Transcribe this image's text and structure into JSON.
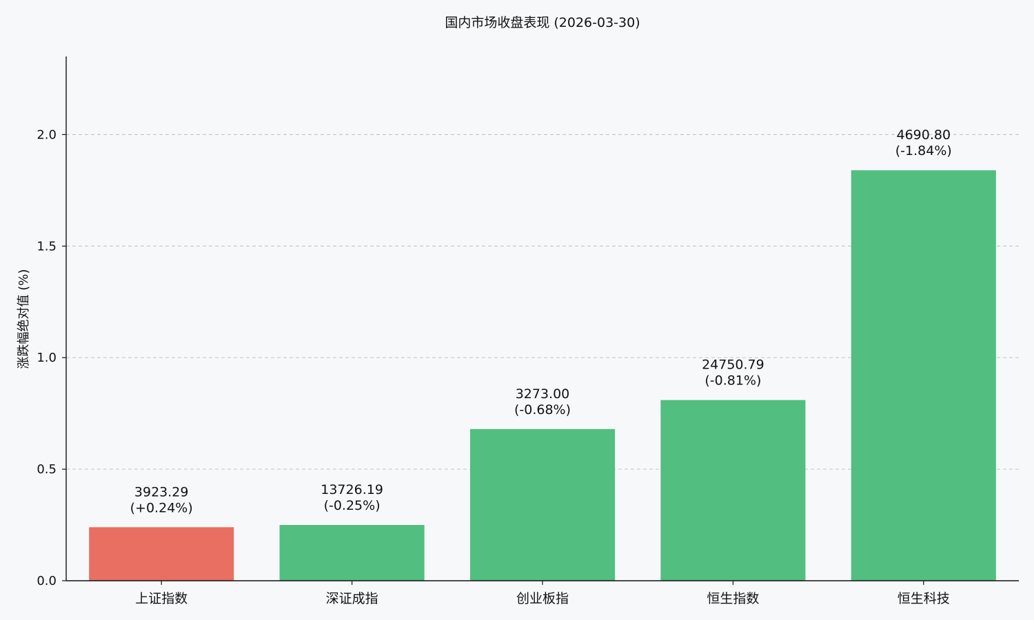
{
  "chart_data": {
    "type": "bar",
    "title": "国内市场收盘表现 (2026-03-30)",
    "xlabel": "",
    "ylabel": "涨跌幅绝对值 (%)",
    "categories": [
      "上证指数",
      "深证成指",
      "创业板指",
      "恒生指数",
      "恒生科技"
    ],
    "values": [
      0.24,
      0.25,
      0.68,
      0.81,
      1.84
    ],
    "closes": [
      "3923.29",
      "13726.19",
      "3273.00",
      "24750.79",
      "4690.80"
    ],
    "changes": [
      "(+0.24%)",
      "(-0.25%)",
      "(-0.68%)",
      "(-0.81%)",
      "(-1.84%)"
    ],
    "bar_colors": [
      "#e86f62",
      "#52be80",
      "#52be80",
      "#52be80",
      "#52be80"
    ],
    "ylim": [
      0,
      2.35
    ],
    "yticks": [
      "0.0",
      "0.5",
      "1.0",
      "1.5",
      "2.0"
    ],
    "ytick_values": [
      0,
      0.5,
      1.0,
      1.5,
      2.0
    ],
    "grid": true,
    "legend": "none"
  }
}
